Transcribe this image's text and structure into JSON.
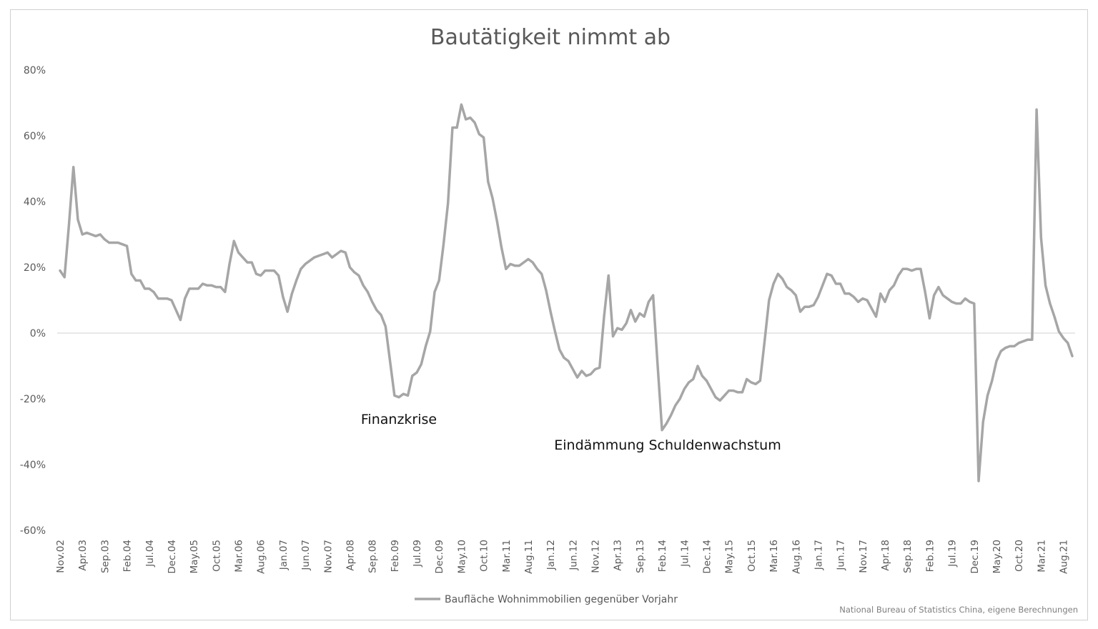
{
  "chart_data": {
    "type": "line",
    "title": "Bautätigkeit nimmt ab",
    "ylim": [
      -0.6,
      0.8
    ],
    "yticks": [
      -0.6,
      -0.4,
      -0.2,
      0,
      0.2,
      0.4,
      0.6,
      0.8
    ],
    "ytick_labels": [
      "-60%",
      "-40%",
      "-20%",
      "0%",
      "20%",
      "40%",
      "60%",
      "80%"
    ],
    "x_start": "2002-11",
    "xtick_labels": [
      "Nov.02",
      "Apr.03",
      "Sep.03",
      "Feb.04",
      "Jul.04",
      "Dec.04",
      "May.05",
      "Oct.05",
      "Mar.06",
      "Aug.06",
      "Jan.07",
      "Jun.07",
      "Nov.07",
      "Apr.08",
      "Sep.08",
      "Feb.09",
      "Jul.09",
      "Dec.09",
      "May.10",
      "Oct.10",
      "Mar.11",
      "Aug.11",
      "Jan.12",
      "Jun.12",
      "Nov.12",
      "Apr.13",
      "Sep.13",
      "Feb.14",
      "Jul.14",
      "Dec.14",
      "May.15",
      "Oct.15",
      "Mar.16",
      "Aug.16",
      "Jan.17",
      "Jun.17",
      "Nov.17",
      "Apr.18",
      "Sep.18",
      "Feb.19",
      "Jul.19",
      "Dec.19",
      "May.20",
      "Oct.20",
      "Mar.21",
      "Aug.21"
    ],
    "grid": false,
    "legend": "bottom",
    "series": [
      {
        "name": "Baufläche Wohnimmobilien gegenüber Vorjahr",
        "color": "#a6a6a6",
        "values": [
          0.19,
          0.17,
          0.33,
          0.505,
          0.345,
          0.3,
          0.305,
          0.3,
          0.295,
          0.3,
          0.285,
          0.275,
          0.275,
          0.275,
          0.27,
          0.265,
          0.18,
          0.16,
          0.16,
          0.135,
          0.135,
          0.125,
          0.105,
          0.105,
          0.105,
          0.1,
          0.07,
          0.04,
          0.105,
          0.135,
          0.135,
          0.135,
          0.15,
          0.145,
          0.145,
          0.14,
          0.14,
          0.125,
          0.21,
          0.28,
          0.245,
          0.23,
          0.215,
          0.215,
          0.18,
          0.175,
          0.19,
          0.19,
          0.19,
          0.175,
          0.11,
          0.065,
          0.12,
          0.16,
          0.195,
          0.21,
          0.22,
          0.23,
          0.235,
          0.24,
          0.245,
          0.23,
          0.24,
          0.25,
          0.245,
          0.2,
          0.185,
          0.175,
          0.145,
          0.125,
          0.095,
          0.07,
          0.055,
          0.02,
          -0.085,
          -0.19,
          -0.195,
          -0.185,
          -0.19,
          -0.13,
          -0.12,
          -0.095,
          -0.04,
          0.005,
          0.125,
          0.16,
          0.27,
          0.395,
          0.625,
          0.625,
          0.695,
          0.65,
          0.655,
          0.64,
          0.605,
          0.595,
          0.46,
          0.41,
          0.34,
          0.26,
          0.195,
          0.21,
          0.205,
          0.205,
          0.215,
          0.225,
          0.215,
          0.195,
          0.18,
          0.13,
          0.065,
          0.005,
          -0.05,
          -0.075,
          -0.085,
          -0.11,
          -0.135,
          -0.115,
          -0.13,
          -0.125,
          -0.11,
          -0.105,
          0.05,
          0.175,
          -0.01,
          0.015,
          0.01,
          0.03,
          0.07,
          0.035,
          0.06,
          0.05,
          0.095,
          0.115,
          -0.095,
          -0.295,
          -0.275,
          -0.25,
          -0.22,
          -0.2,
          -0.17,
          -0.15,
          -0.14,
          -0.1,
          -0.13,
          -0.145,
          -0.17,
          -0.195,
          -0.205,
          -0.19,
          -0.175,
          -0.175,
          -0.18,
          -0.18,
          -0.14,
          -0.15,
          -0.155,
          -0.145,
          -0.025,
          0.1,
          0.15,
          0.18,
          0.165,
          0.14,
          0.13,
          0.115,
          0.065,
          0.08,
          0.08,
          0.085,
          0.11,
          0.145,
          0.18,
          0.175,
          0.15,
          0.15,
          0.12,
          0.12,
          0.11,
          0.095,
          0.105,
          0.1,
          0.075,
          0.05,
          0.12,
          0.095,
          0.13,
          0.145,
          0.175,
          0.195,
          0.195,
          0.19,
          0.195,
          0.195,
          0.125,
          0.045,
          0.115,
          0.14,
          0.115,
          0.105,
          0.095,
          0.09,
          0.09,
          0.105,
          0.095,
          0.09,
          -0.45,
          -0.27,
          -0.19,
          -0.145,
          -0.085,
          -0.055,
          -0.045,
          -0.04,
          -0.04,
          -0.03,
          -0.025,
          -0.02,
          -0.02,
          0.68,
          0.29,
          0.145,
          0.09,
          0.05,
          0.005,
          -0.015,
          -0.03,
          -0.07
        ]
      }
    ],
    "annotations": [
      {
        "text": "Finanzkrise",
        "x_index": 76
      },
      {
        "text": "Eindämmung Schuldenwachstum",
        "x_index": 135
      }
    ],
    "source": "National Bureau of Statistics China, eigene Berechnungen"
  }
}
